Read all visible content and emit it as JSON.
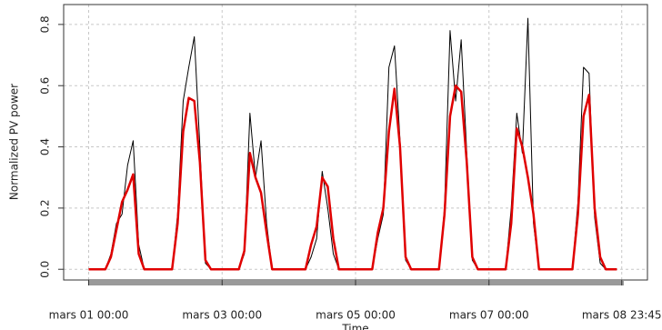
{
  "chart_data": {
    "type": "line",
    "x_label": "Time",
    "y_label": "Normalized PV power",
    "x": [
      0,
      2,
      4,
      6,
      8,
      10,
      12,
      14,
      16,
      18,
      20,
      22,
      24,
      26,
      28,
      30,
      32,
      34,
      36,
      38,
      40,
      42,
      44,
      46,
      48,
      50,
      52,
      54,
      56,
      58,
      60,
      62,
      64,
      66,
      68,
      70,
      72,
      74,
      76,
      78,
      80,
      82,
      84,
      86,
      88,
      90,
      92,
      94,
      96,
      98,
      100,
      102,
      104,
      106,
      108,
      110,
      112,
      114,
      116,
      118,
      120,
      122,
      124,
      126,
      128,
      130,
      132,
      134,
      136,
      138,
      140,
      142,
      144,
      146,
      148,
      150,
      152,
      154,
      156,
      158,
      160,
      162,
      164,
      166,
      168,
      170,
      172,
      174,
      176,
      178,
      180,
      182,
      184,
      186,
      188,
      190
    ],
    "series": [
      {
        "color": "#000000",
        "values": [
          0,
          0,
          0,
          0,
          0.05,
          0.15,
          0.18,
          0.34,
          0.42,
          0.08,
          0,
          0,
          0,
          0,
          0,
          0,
          0.18,
          0.55,
          0.66,
          0.76,
          0.4,
          0.02,
          0,
          0,
          0,
          0,
          0,
          0,
          0.05,
          0.51,
          0.3,
          0.42,
          0.15,
          0,
          0,
          0,
          0,
          0,
          0,
          0,
          0.04,
          0.1,
          0.32,
          0.2,
          0.05,
          0,
          0,
          0,
          0,
          0,
          0,
          0,
          0.1,
          0.18,
          0.66,
          0.73,
          0.42,
          0.03,
          0,
          0,
          0,
          0,
          0,
          0,
          0.2,
          0.78,
          0.55,
          0.75,
          0.38,
          0.03,
          0,
          0,
          0,
          0,
          0,
          0,
          0.2,
          0.51,
          0.38,
          0.82,
          0.15,
          0,
          0,
          0,
          0,
          0,
          0,
          0,
          0.22,
          0.66,
          0.64,
          0.17,
          0.02,
          0,
          0,
          0
        ]
      },
      {
        "color": "#e00000",
        "values": [
          0,
          0,
          0,
          0,
          0.04,
          0.13,
          0.22,
          0.26,
          0.31,
          0.05,
          0,
          0,
          0,
          0,
          0,
          0,
          0.15,
          0.45,
          0.56,
          0.55,
          0.35,
          0.03,
          0,
          0,
          0,
          0,
          0,
          0,
          0.06,
          0.38,
          0.3,
          0.25,
          0.12,
          0,
          0,
          0,
          0,
          0,
          0,
          0,
          0.08,
          0.14,
          0.3,
          0.27,
          0.1,
          0,
          0,
          0,
          0,
          0,
          0,
          0,
          0.12,
          0.2,
          0.45,
          0.59,
          0.4,
          0.04,
          0,
          0,
          0,
          0,
          0,
          0,
          0.18,
          0.5,
          0.6,
          0.58,
          0.35,
          0.04,
          0,
          0,
          0,
          0,
          0,
          0,
          0.15,
          0.46,
          0.4,
          0.3,
          0.18,
          0,
          0,
          0,
          0,
          0,
          0,
          0,
          0.18,
          0.5,
          0.57,
          0.2,
          0.04,
          0,
          0,
          0
        ]
      }
    ],
    "xlim": [
      -9,
      201
    ],
    "xticks": [
      {
        "value": 0,
        "label": "mars 01 00:00"
      },
      {
        "value": 48,
        "label": "mars 03 00:00"
      },
      {
        "value": 96,
        "label": "mars 05 00:00"
      },
      {
        "value": 144,
        "label": "mars 07 00:00"
      },
      {
        "value": 191.75,
        "label": "mars 08 23:45"
      }
    ],
    "ylim": [
      -0.035,
      0.865
    ],
    "yticks": [
      {
        "value": 0,
        "label": "0.0"
      },
      {
        "value": 0.2,
        "label": "0.2"
      },
      {
        "value": 0.4,
        "label": "0.4"
      },
      {
        "value": 0.6,
        "label": "0.6"
      },
      {
        "value": 0.8,
        "label": "0.8"
      }
    ],
    "grid": true
  }
}
